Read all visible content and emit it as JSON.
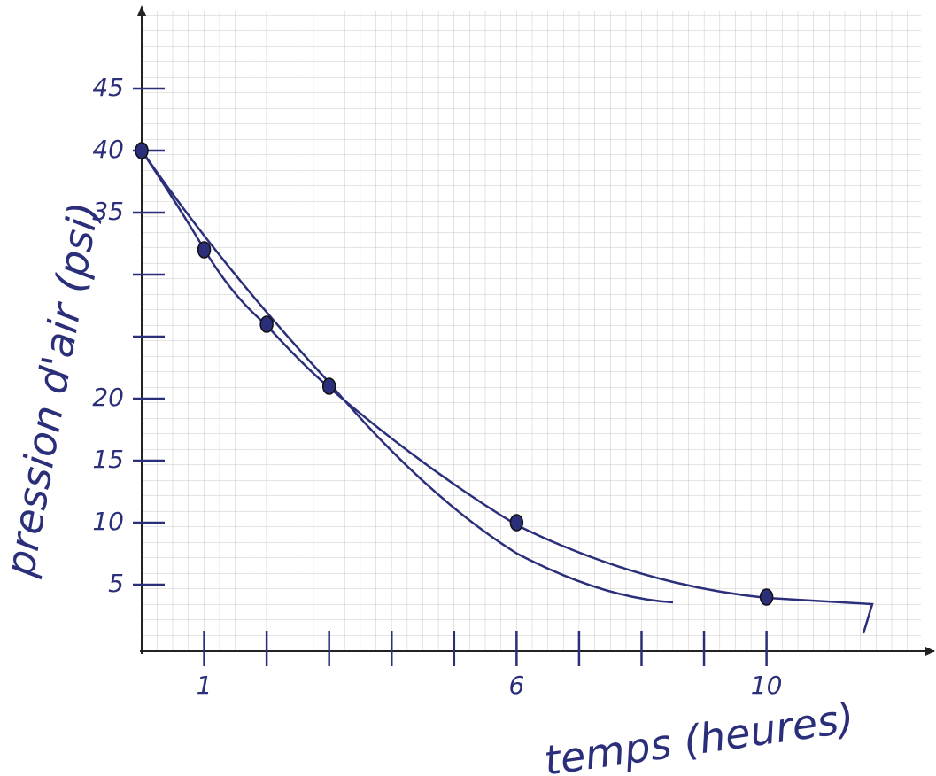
{
  "chart_data": {
    "type": "scatter",
    "x_label": "temps (heures)",
    "y_label": "pression d'air (psi)",
    "x": [
      0,
      1,
      2,
      3,
      6,
      10
    ],
    "values": [
      40,
      32,
      26,
      21,
      10,
      4
    ],
    "color": "#2b2f7a",
    "xlim": [
      0,
      12.5
    ],
    "ylim": [
      0,
      52
    ],
    "xticks": [
      1,
      {
        "value": 2,
        "label": null
      },
      {
        "value": 3,
        "label": null
      },
      {
        "value": 4,
        "label": null
      },
      {
        "value": 5,
        "label": null
      },
      6,
      {
        "value": 7,
        "label": null
      },
      {
        "value": 8,
        "label": null
      },
      {
        "value": 9,
        "label": null
      },
      10
    ],
    "yticks": [
      5,
      10,
      15,
      20,
      {
        "value": 25,
        "label": null
      },
      {
        "value": 30,
        "label": null
      },
      35,
      40,
      45
    ]
  }
}
